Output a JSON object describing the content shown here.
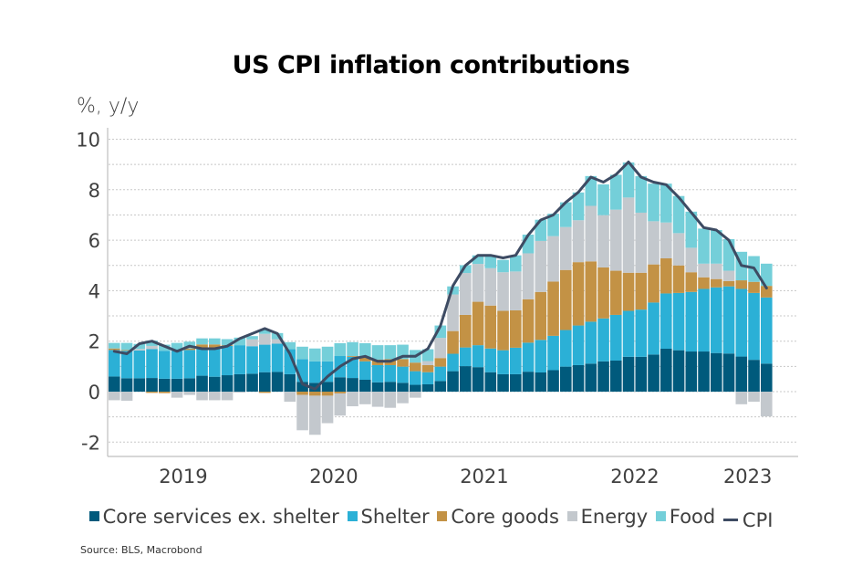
{
  "chart_data": {
    "type": "bar",
    "subtype": "stacked-bar-with-line",
    "title": "US CPI inflation contributions",
    "ylabel": "%, y/y",
    "xlabel": "",
    "ylim": [
      -2.6,
      10.5
    ],
    "yticks": [
      -2,
      0,
      2,
      4,
      6,
      8,
      10
    ],
    "ytick_labels": [
      "-2",
      "0",
      "2",
      "4",
      "6",
      "8",
      "10"
    ],
    "grid": true,
    "xtick_labels": [
      {
        "label": "2019",
        "month_index": 5.5
      },
      {
        "label": "2020",
        "month_index": 17.5
      },
      {
        "label": "2021",
        "month_index": 29.5
      },
      {
        "label": "2022",
        "month_index": 41.5
      },
      {
        "label": "2023",
        "month_index": 50.5
      }
    ],
    "categories": [
      "2019-01",
      "2019-02",
      "2019-03",
      "2019-04",
      "2019-05",
      "2019-06",
      "2019-07",
      "2019-08",
      "2019-09",
      "2019-10",
      "2019-11",
      "2019-12",
      "2020-01",
      "2020-02",
      "2020-03",
      "2020-04",
      "2020-05",
      "2020-06",
      "2020-07",
      "2020-08",
      "2020-09",
      "2020-10",
      "2020-11",
      "2020-12",
      "2021-01",
      "2021-02",
      "2021-03",
      "2021-04",
      "2021-05",
      "2021-06",
      "2021-07",
      "2021-08",
      "2021-09",
      "2021-10",
      "2021-11",
      "2021-12",
      "2022-01",
      "2022-02",
      "2022-03",
      "2022-04",
      "2022-05",
      "2022-06",
      "2022-07",
      "2022-08",
      "2022-09",
      "2022-10",
      "2022-11",
      "2022-12",
      "2023-01",
      "2023-02",
      "2023-03",
      "2023-04",
      "2023-05"
    ],
    "series": [
      {
        "name": "Core services ex. shelter",
        "kind": "bar",
        "color": "#005a7c",
        "values": [
          0.6,
          0.53,
          0.53,
          0.54,
          0.51,
          0.51,
          0.53,
          0.63,
          0.59,
          0.65,
          0.69,
          0.71,
          0.77,
          0.78,
          0.69,
          0.39,
          0.35,
          0.39,
          0.57,
          0.54,
          0.47,
          0.37,
          0.39,
          0.35,
          0.27,
          0.29,
          0.42,
          0.81,
          1.01,
          0.97,
          0.77,
          0.69,
          0.69,
          0.79,
          0.76,
          0.85,
          0.99,
          1.05,
          1.11,
          1.2,
          1.23,
          1.38,
          1.38,
          1.47,
          1.7,
          1.64,
          1.59,
          1.59,
          1.53,
          1.51,
          1.39,
          1.26,
          1.11
        ]
      },
      {
        "name": "Shelter",
        "kind": "bar",
        "color": "#2bb0d6",
        "values": [
          1.05,
          1.09,
          1.1,
          1.15,
          1.11,
          1.11,
          1.12,
          1.12,
          1.16,
          1.16,
          1.15,
          1.09,
          1.09,
          1.12,
          0.99,
          0.9,
          0.85,
          0.81,
          0.84,
          0.84,
          0.73,
          0.68,
          0.66,
          0.64,
          0.54,
          0.48,
          0.57,
          0.69,
          0.74,
          0.87,
          0.94,
          0.95,
          1.05,
          1.15,
          1.29,
          1.36,
          1.45,
          1.57,
          1.66,
          1.7,
          1.81,
          1.82,
          1.87,
          2.06,
          2.19,
          2.27,
          2.36,
          2.48,
          2.6,
          2.66,
          2.68,
          2.65,
          2.62
        ]
      },
      {
        "name": "Core goods",
        "kind": "bar",
        "color": "#c39245",
        "values": [
          0.06,
          0.03,
          0.0,
          -0.05,
          -0.06,
          0.0,
          0.06,
          0.12,
          0.12,
          0.03,
          0.0,
          0.0,
          -0.05,
          0.0,
          0.0,
          -0.13,
          -0.16,
          -0.16,
          -0.07,
          0.03,
          0.15,
          0.22,
          0.24,
          0.3,
          0.34,
          0.28,
          0.34,
          0.9,
          1.29,
          1.72,
          1.7,
          1.56,
          1.48,
          1.72,
          1.9,
          2.15,
          2.38,
          2.51,
          2.39,
          2.02,
          1.75,
          1.51,
          1.46,
          1.51,
          1.39,
          1.09,
          0.78,
          0.46,
          0.33,
          0.21,
          0.34,
          0.44,
          0.46
        ]
      },
      {
        "name": "Energy",
        "kind": "bar",
        "color": "#c3c8cd",
        "values": [
          -0.34,
          -0.36,
          0.06,
          0.12,
          0.0,
          -0.24,
          -0.13,
          -0.34,
          -0.34,
          -0.34,
          -0.04,
          0.27,
          0.43,
          0.18,
          -0.4,
          -1.4,
          -1.55,
          -1.09,
          -0.88,
          -0.58,
          -0.5,
          -0.6,
          -0.64,
          -0.46,
          -0.24,
          0.16,
          0.8,
          1.45,
          1.66,
          1.5,
          1.48,
          1.53,
          1.54,
          1.82,
          2.02,
          1.8,
          1.7,
          1.66,
          2.2,
          2.07,
          2.42,
          2.98,
          2.38,
          1.71,
          1.42,
          1.28,
          0.97,
          0.54,
          0.61,
          0.41,
          -0.5,
          -0.4,
          -0.98
        ]
      },
      {
        "name": "Food",
        "kind": "bar",
        "color": "#74cfd9",
        "values": [
          0.22,
          0.28,
          0.2,
          0.21,
          0.24,
          0.31,
          0.27,
          0.24,
          0.24,
          0.24,
          0.3,
          0.13,
          0.15,
          0.24,
          0.28,
          0.49,
          0.51,
          0.58,
          0.51,
          0.55,
          0.57,
          0.57,
          0.55,
          0.57,
          0.5,
          0.47,
          0.49,
          0.32,
          0.31,
          0.34,
          0.47,
          0.49,
          0.64,
          0.74,
          0.84,
          0.89,
          0.98,
          1.1,
          1.18,
          1.22,
          1.38,
          1.39,
          1.45,
          1.49,
          1.54,
          1.47,
          1.43,
          1.39,
          1.33,
          1.25,
          1.13,
          1.02,
          0.88
        ]
      },
      {
        "name": "CPI",
        "kind": "line",
        "color": "#3d4b63",
        "values": [
          1.6,
          1.5,
          1.9,
          2.0,
          1.8,
          1.6,
          1.8,
          1.7,
          1.7,
          1.8,
          2.1,
          2.3,
          2.5,
          2.3,
          1.5,
          0.3,
          0.1,
          0.6,
          1.0,
          1.3,
          1.4,
          1.2,
          1.2,
          1.4,
          1.4,
          1.7,
          2.6,
          4.2,
          5.0,
          5.4,
          5.4,
          5.3,
          5.4,
          6.2,
          6.8,
          7.0,
          7.5,
          7.9,
          8.5,
          8.3,
          8.6,
          9.1,
          8.5,
          8.3,
          8.2,
          7.7,
          7.1,
          6.5,
          6.4,
          6.0,
          5.0,
          4.9,
          4.1
        ]
      }
    ],
    "legend": {
      "position": "bottom",
      "entries": [
        {
          "label": "Core services ex. shelter",
          "marker": "square",
          "color": "#005a7c"
        },
        {
          "label": "Shelter",
          "marker": "square",
          "color": "#2bb0d6"
        },
        {
          "label": "Core goods",
          "marker": "square",
          "color": "#c39245"
        },
        {
          "label": "Energy",
          "marker": "square",
          "color": "#c3c8cd"
        },
        {
          "label": "Food",
          "marker": "square",
          "color": "#74cfd9"
        },
        {
          "label": "CPI",
          "marker": "line",
          "color": "#3d4b63"
        }
      ]
    },
    "source": "Source: BLS, Macrobond"
  }
}
